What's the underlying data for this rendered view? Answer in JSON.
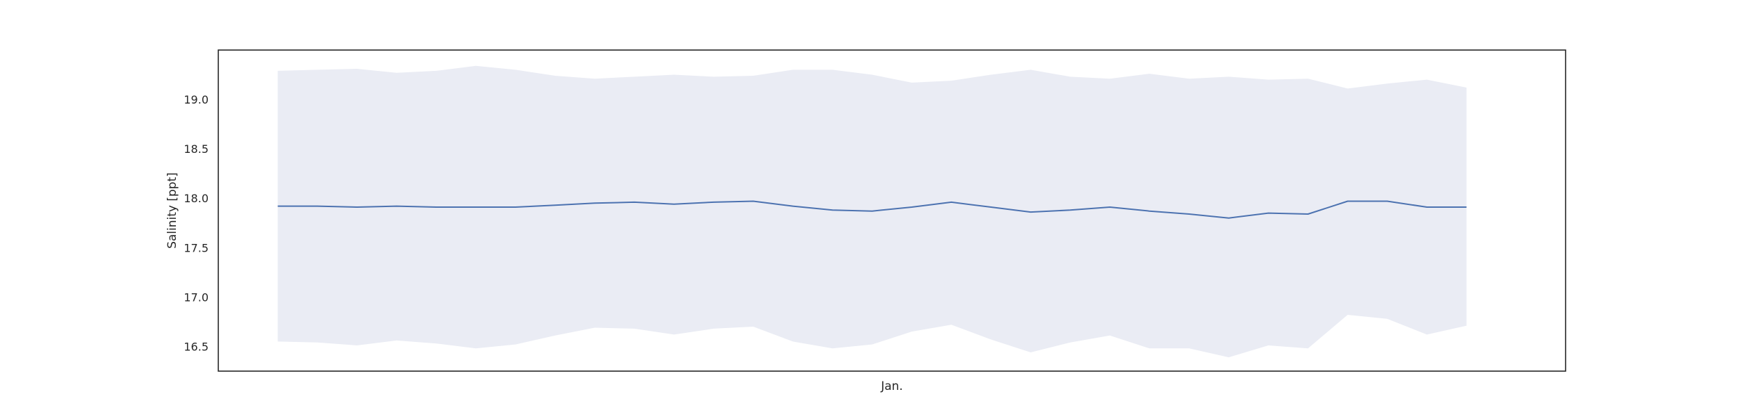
{
  "chart_data": {
    "type": "line",
    "title": "",
    "xlabel": "Jan.",
    "ylabel": "Salinity [ppt]",
    "grid": false,
    "legend": "none",
    "ylim": [
      16.25,
      19.5
    ],
    "xlim": [
      -1.5,
      32.5
    ],
    "yticks": [
      16.5,
      17.0,
      17.5,
      18.0,
      18.5,
      19.0
    ],
    "ytick_labels": [
      "16.5",
      "17.0",
      "17.5",
      "18.0",
      "18.5",
      "19.0"
    ],
    "x": [
      0,
      1,
      2,
      3,
      4,
      5,
      6,
      7,
      8,
      9,
      10,
      11,
      12,
      13,
      14,
      15,
      16,
      17,
      18,
      19,
      20,
      21,
      22,
      23,
      24,
      25,
      26,
      27,
      28,
      29,
      30
    ],
    "series": [
      {
        "name": "",
        "color": "#4c72b0",
        "band_color": "#eaecf4",
        "mean": [
          17.92,
          17.92,
          17.91,
          17.92,
          17.91,
          17.91,
          17.91,
          17.93,
          17.95,
          17.96,
          17.94,
          17.96,
          17.97,
          17.92,
          17.88,
          17.87,
          17.91,
          17.96,
          17.91,
          17.86,
          17.88,
          17.91,
          17.87,
          17.84,
          17.8,
          17.85,
          17.84,
          17.97,
          17.97,
          17.91,
          17.91
        ],
        "upper": [
          19.29,
          19.3,
          19.31,
          19.27,
          19.29,
          19.34,
          19.3,
          19.24,
          19.21,
          19.23,
          19.25,
          19.23,
          19.24,
          19.3,
          19.3,
          19.25,
          19.17,
          19.19,
          19.25,
          19.3,
          19.23,
          19.21,
          19.26,
          19.21,
          19.23,
          19.2,
          19.21,
          19.11,
          19.16,
          19.2,
          19.12
        ],
        "lower": [
          16.55,
          16.54,
          16.51,
          16.56,
          16.53,
          16.48,
          16.52,
          16.61,
          16.69,
          16.68,
          16.62,
          16.68,
          16.7,
          16.55,
          16.48,
          16.52,
          16.65,
          16.72,
          16.57,
          16.44,
          16.54,
          16.61,
          16.48,
          16.48,
          16.39,
          16.51,
          16.48,
          16.82,
          16.78,
          16.62,
          16.71
        ]
      }
    ]
  }
}
